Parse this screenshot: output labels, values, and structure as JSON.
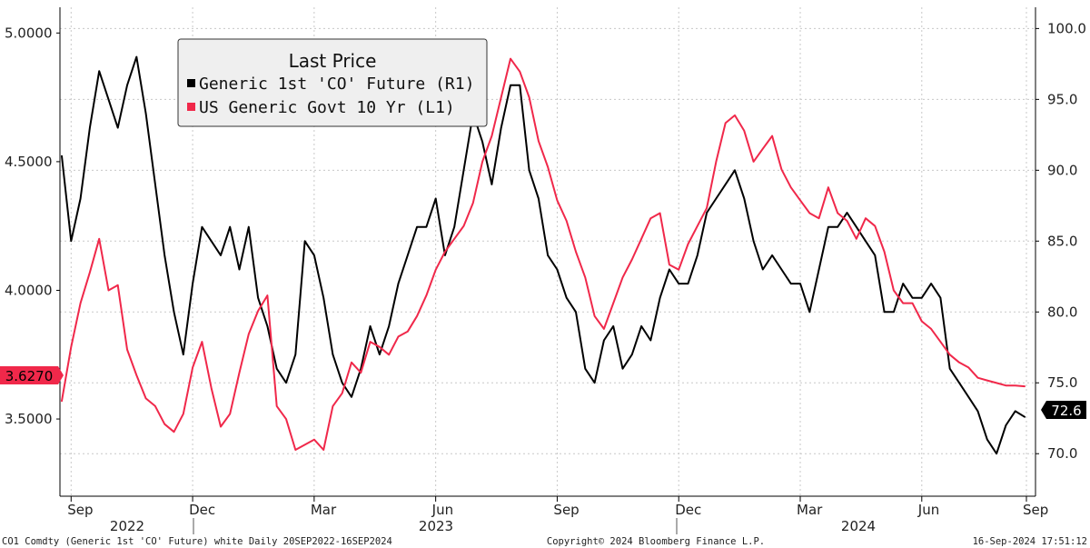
{
  "chart_data": {
    "type": "line",
    "title": "Last Price",
    "left_axis": {
      "min": 3.2,
      "max": 5.1,
      "ticks": [
        "5.0000",
        "4.5000",
        "4.0000",
        "3.5000"
      ],
      "tick_values": [
        5.0,
        4.5,
        4.0,
        3.5
      ]
    },
    "right_axis": {
      "min": 67.0,
      "max": 101.5,
      "ticks": [
        "100.0",
        "95.0",
        "90.0",
        "85.0",
        "80.0",
        "75.0",
        "70.0"
      ],
      "tick_values": [
        100,
        95,
        90,
        85,
        80,
        75,
        70
      ]
    },
    "x_axis": {
      "months": [
        "Sep",
        "Dec",
        "Mar",
        "Jun",
        "Sep",
        "Dec",
        "Mar",
        "Jun",
        "Sep"
      ],
      "years": [
        "2022",
        "2023",
        "2024"
      ],
      "range": "20SEP2022-16SEP2024",
      "n_points": 104
    },
    "series": [
      {
        "name": "Generic 1st 'CO' Future (R1)",
        "axis": "right",
        "color": "#000000",
        "last_label": "72.6",
        "values": [
          91,
          85,
          88,
          93,
          97,
          95,
          93,
          96,
          98,
          94,
          89,
          84,
          80,
          77,
          82,
          86,
          85,
          84,
          86,
          83,
          86,
          81,
          79,
          76,
          75,
          77,
          85,
          84,
          81,
          77,
          75,
          74,
          76,
          79,
          77,
          79,
          82,
          84,
          86,
          86,
          88,
          84,
          86,
          90,
          94,
          92,
          89,
          93,
          96,
          96,
          90,
          88,
          84,
          83,
          81,
          80,
          76,
          75,
          78,
          79,
          76,
          77,
          79,
          78,
          81,
          83,
          82,
          82,
          84,
          87,
          88,
          89,
          90,
          88,
          85,
          83,
          84,
          83,
          82,
          82,
          80,
          83,
          86,
          86,
          87,
          86,
          85,
          84,
          80,
          80,
          82,
          81,
          81,
          82,
          81,
          76,
          75,
          74,
          73,
          71,
          70,
          72,
          73,
          72.6
        ]
      },
      {
        "name": "US Generic Govt 10 Yr (L1)",
        "axis": "left",
        "color": "#f0284a",
        "last_label": "3.6270",
        "values": [
          3.57,
          3.78,
          3.95,
          4.07,
          4.2,
          4.0,
          4.02,
          3.77,
          3.67,
          3.58,
          3.55,
          3.48,
          3.45,
          3.52,
          3.7,
          3.8,
          3.62,
          3.47,
          3.52,
          3.68,
          3.83,
          3.92,
          3.98,
          3.55,
          3.5,
          3.38,
          3.4,
          3.42,
          3.38,
          3.55,
          3.6,
          3.72,
          3.68,
          3.8,
          3.78,
          3.75,
          3.82,
          3.84,
          3.9,
          3.98,
          4.08,
          4.15,
          4.2,
          4.25,
          4.34,
          4.5,
          4.6,
          4.75,
          4.9,
          4.85,
          4.75,
          4.58,
          4.48,
          4.35,
          4.27,
          4.15,
          4.05,
          3.9,
          3.85,
          3.95,
          4.05,
          4.12,
          4.2,
          4.28,
          4.3,
          4.1,
          4.08,
          4.18,
          4.25,
          4.32,
          4.5,
          4.65,
          4.68,
          4.62,
          4.5,
          4.55,
          4.6,
          4.47,
          4.4,
          4.35,
          4.3,
          4.28,
          4.4,
          4.3,
          4.27,
          4.2,
          4.28,
          4.25,
          4.15,
          4.0,
          3.95,
          3.95,
          3.88,
          3.85,
          3.8,
          3.75,
          3.72,
          3.7,
          3.66,
          3.65,
          3.64,
          3.63,
          3.63,
          3.627
        ]
      }
    ]
  },
  "footer": {
    "left": "CO1 Comdty (Generic 1st 'CO' Future) white  Daily 20SEP2022-16SEP2024",
    "center": "Copyright© 2024 Bloomberg Finance L.P.",
    "right": "16-Sep-2024 17:51:12"
  }
}
